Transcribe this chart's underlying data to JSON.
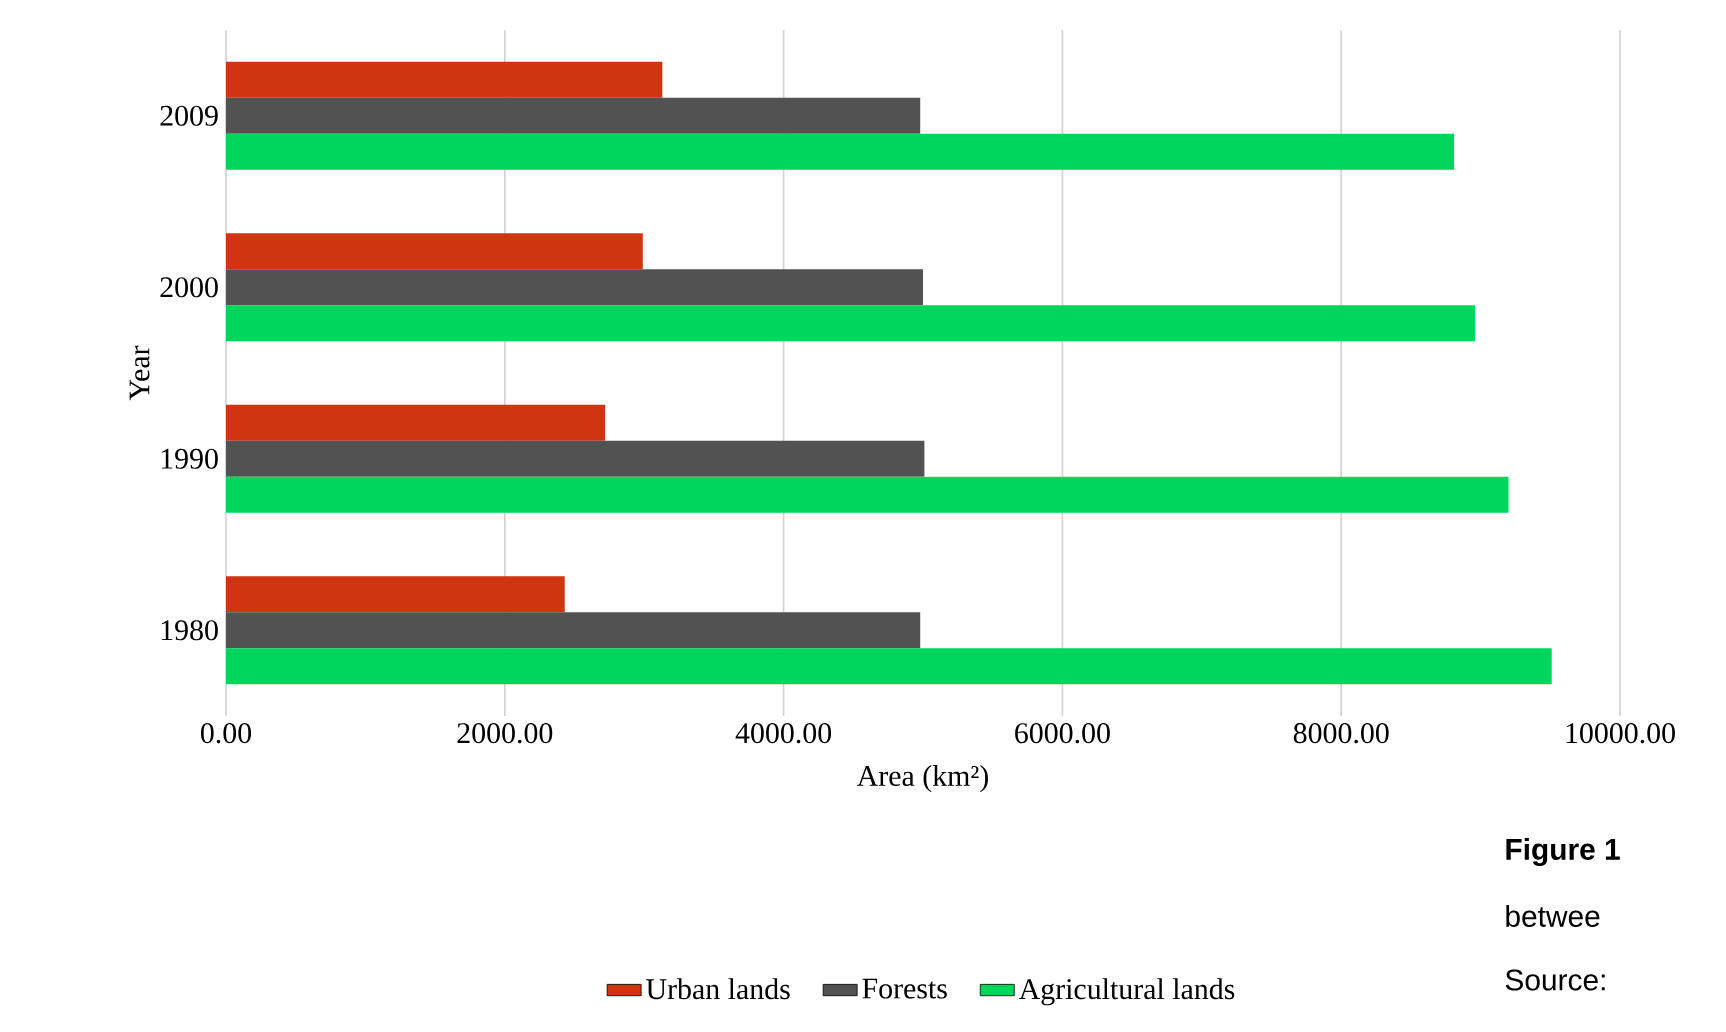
{
  "chart_data": {
    "type": "bar",
    "orientation": "horizontal",
    "categories": [
      "2009",
      "2000",
      "1990",
      "1980"
    ],
    "series": [
      {
        "name": "Urban lands",
        "color": "#d03512",
        "values": [
          3130,
          2990,
          2720,
          2430
        ]
      },
      {
        "name": "Forests",
        "color": "#525252",
        "values": [
          4980,
          5000,
          5010,
          4980
        ]
      },
      {
        "name": "Agricultural lands",
        "color": "#00d55c",
        "values": [
          8810,
          8960,
          9200,
          9510
        ]
      }
    ],
    "xlim": [
      0,
      10000
    ],
    "xticks": [
      {
        "value": 0,
        "label": "0.00"
      },
      {
        "value": 2000,
        "label": "2000.00"
      },
      {
        "value": 4000,
        "label": "4000.00"
      },
      {
        "value": 6000,
        "label": "6000.00"
      },
      {
        "value": 8000,
        "label": "8000.00"
      },
      {
        "value": 10000,
        "label": "10000.00"
      }
    ],
    "xlabel": "Area (km²)",
    "ylabel": "Year",
    "grid": "x",
    "legend": "bottom",
    "annotations": [
      "Figure 1",
      "betwee",
      "Source:"
    ]
  }
}
